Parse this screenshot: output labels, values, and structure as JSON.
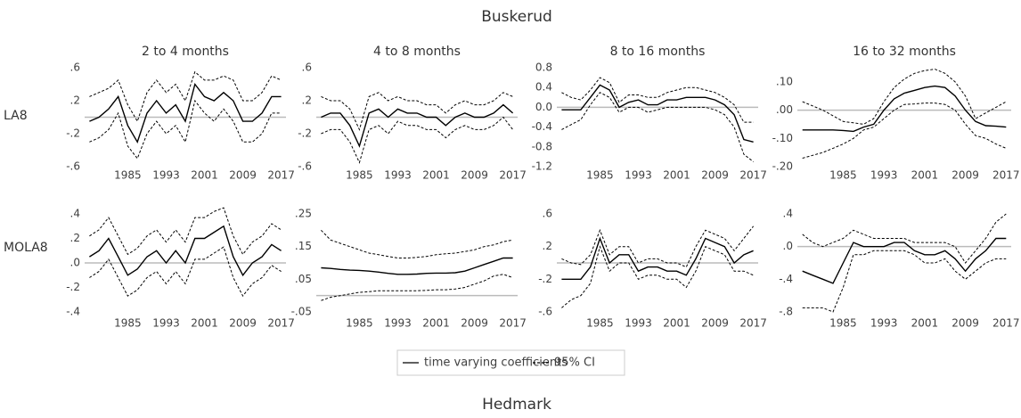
{
  "title": "Buskerud",
  "next_title": "Hedmark",
  "legend": [
    {
      "name": "time varying coefficients",
      "style": "solid"
    },
    {
      "name": "95% CI",
      "style": "dashed"
    }
  ],
  "chart_data": [
    {
      "type": "line",
      "title": "2 to 4 months",
      "row_label": "LA8",
      "x": [
        1977,
        1979,
        1981,
        1983,
        1985,
        1987,
        1989,
        1991,
        1993,
        1995,
        1997,
        1999,
        2001,
        2003,
        2005,
        2007,
        2009,
        2011,
        2013,
        2015,
        2017
      ],
      "estimate": [
        -0.05,
        0.0,
        0.1,
        0.25,
        -0.1,
        -0.3,
        0.05,
        0.2,
        0.05,
        0.15,
        -0.05,
        0.4,
        0.25,
        0.2,
        0.3,
        0.2,
        -0.05,
        -0.05,
        0.05,
        0.25,
        0.25
      ],
      "upper": [
        0.25,
        0.3,
        0.35,
        0.45,
        0.15,
        -0.05,
        0.3,
        0.45,
        0.3,
        0.4,
        0.2,
        0.55,
        0.45,
        0.45,
        0.5,
        0.45,
        0.2,
        0.2,
        0.3,
        0.5,
        0.45
      ],
      "lower": [
        -0.3,
        -0.25,
        -0.15,
        0.05,
        -0.35,
        -0.5,
        -0.2,
        -0.05,
        -0.2,
        -0.1,
        -0.3,
        0.2,
        0.05,
        -0.05,
        0.1,
        -0.05,
        -0.3,
        -0.3,
        -0.2,
        0.05,
        0.05
      ],
      "xlim": [
        1976,
        2018
      ],
      "xticks": [
        1985,
        1993,
        2001,
        2009,
        2017
      ],
      "ylim": [
        -0.6,
        0.6
      ],
      "yticks": [
        {
          "value": 0.6,
          "label": ".6"
        },
        {
          "value": 0.2,
          "label": ".2"
        },
        {
          "value": -0.2,
          "label": "-.2"
        },
        {
          "value": -0.6,
          "label": "-.6"
        }
      ],
      "hline": 0
    },
    {
      "type": "line",
      "title": "4 to 8 months",
      "x": [
        1977,
        1979,
        1981,
        1983,
        1985,
        1987,
        1989,
        1991,
        1993,
        1995,
        1997,
        1999,
        2001,
        2003,
        2005,
        2007,
        2009,
        2011,
        2013,
        2015,
        2017
      ],
      "estimate": [
        0.0,
        0.05,
        0.05,
        -0.1,
        -0.35,
        0.05,
        0.1,
        0.0,
        0.1,
        0.05,
        0.05,
        0.0,
        0.0,
        -0.1,
        0.0,
        0.05,
        0.0,
        0.0,
        0.05,
        0.15,
        0.05
      ],
      "upper": [
        0.25,
        0.2,
        0.2,
        0.1,
        -0.15,
        0.25,
        0.3,
        0.2,
        0.25,
        0.2,
        0.2,
        0.15,
        0.15,
        0.05,
        0.15,
        0.2,
        0.15,
        0.15,
        0.2,
        0.3,
        0.25
      ],
      "lower": [
        -0.2,
        -0.15,
        -0.15,
        -0.3,
        -0.55,
        -0.15,
        -0.1,
        -0.2,
        -0.05,
        -0.1,
        -0.1,
        -0.15,
        -0.15,
        -0.25,
        -0.15,
        -0.1,
        -0.15,
        -0.15,
        -0.1,
        0.0,
        -0.15
      ],
      "xlim": [
        1976,
        2018
      ],
      "xticks": [
        1985,
        1993,
        2001,
        2009,
        2017
      ],
      "ylim": [
        -0.6,
        0.6
      ],
      "yticks": [
        {
          "value": 0.6,
          "label": ".6"
        },
        {
          "value": 0.2,
          "label": ".2"
        },
        {
          "value": -0.2,
          "label": "-.2"
        },
        {
          "value": -0.6,
          "label": "-.6"
        }
      ],
      "hline": 0
    },
    {
      "type": "line",
      "title": "8 to 16 months",
      "x": [
        1977,
        1979,
        1981,
        1983,
        1985,
        1987,
        1989,
        1991,
        1993,
        1995,
        1997,
        1999,
        2001,
        2003,
        2005,
        2007,
        2009,
        2011,
        2013,
        2015,
        2017
      ],
      "estimate": [
        -0.05,
        -0.05,
        -0.05,
        0.2,
        0.45,
        0.35,
        0.0,
        0.1,
        0.15,
        0.05,
        0.05,
        0.15,
        0.15,
        0.2,
        0.2,
        0.2,
        0.15,
        0.05,
        -0.15,
        -0.65,
        -0.7
      ],
      "upper": [
        0.3,
        0.2,
        0.15,
        0.35,
        0.6,
        0.5,
        0.1,
        0.25,
        0.25,
        0.2,
        0.2,
        0.3,
        0.35,
        0.4,
        0.4,
        0.35,
        0.3,
        0.2,
        0.05,
        -0.3,
        -0.3
      ],
      "lower": [
        -0.45,
        -0.35,
        -0.25,
        0.05,
        0.3,
        0.2,
        -0.1,
        0.0,
        0.0,
        -0.1,
        -0.05,
        0.0,
        0.0,
        0.0,
        0.0,
        0.0,
        -0.05,
        -0.15,
        -0.4,
        -0.95,
        -1.1
      ],
      "xlim": [
        1976,
        2018
      ],
      "xticks": [
        1985,
        1993,
        2001,
        2009,
        2017
      ],
      "ylim": [
        -1.2,
        0.8
      ],
      "yticks": [
        0.8,
        0.4,
        {
          "value": 0,
          "label": "0.0"
        },
        -0.4,
        -0.8,
        -1.2
      ],
      "hline": 0
    },
    {
      "type": "line",
      "title": "16 to 32 months",
      "x": [
        1977,
        1979,
        1981,
        1983,
        1985,
        1987,
        1989,
        1991,
        1993,
        1995,
        1997,
        1999,
        2001,
        2003,
        2005,
        2007,
        2009,
        2011,
        2013,
        2015,
        2017
      ],
      "estimate": [
        -0.07,
        -0.07,
        -0.07,
        -0.07,
        -0.072,
        -0.075,
        -0.06,
        -0.05,
        0.0,
        0.04,
        0.06,
        0.07,
        0.08,
        0.085,
        0.08,
        0.05,
        0.0,
        -0.04,
        -0.055,
        -0.057,
        -0.06
      ],
      "upper": [
        0.03,
        0.015,
        0.0,
        -0.02,
        -0.04,
        -0.045,
        -0.05,
        -0.03,
        0.03,
        0.08,
        0.11,
        0.13,
        0.14,
        0.145,
        0.13,
        0.1,
        0.05,
        -0.03,
        -0.01,
        0.01,
        0.03
      ],
      "lower": [
        -0.17,
        -0.16,
        -0.15,
        -0.135,
        -0.12,
        -0.1,
        -0.07,
        -0.06,
        -0.03,
        0.0,
        0.02,
        0.022,
        0.025,
        0.025,
        0.02,
        0.0,
        -0.05,
        -0.09,
        -0.1,
        -0.12,
        -0.135
      ],
      "xlim": [
        1976,
        2018
      ],
      "xticks": [
        1985,
        1993,
        2001,
        2009,
        2017
      ],
      "ylim": [
        -0.2,
        0.15
      ],
      "yticks": [
        {
          "value": 0.1,
          "label": ".10"
        },
        {
          "value": 0,
          "label": ".00"
        },
        {
          "value": -0.1,
          "label": "-.10"
        },
        {
          "value": -0.2,
          "label": "-.20"
        }
      ],
      "hline": 0
    },
    {
      "type": "line",
      "row_label": "MOLA8",
      "x": [
        1977,
        1979,
        1981,
        1983,
        1985,
        1987,
        1989,
        1991,
        1993,
        1995,
        1997,
        1999,
        2001,
        2003,
        2005,
        2007,
        2009,
        2011,
        2013,
        2015,
        2017
      ],
      "estimate": [
        0.05,
        0.1,
        0.2,
        0.05,
        -0.1,
        -0.05,
        0.05,
        0.1,
        0.0,
        0.1,
        0.0,
        0.2,
        0.2,
        0.25,
        0.3,
        0.05,
        -0.1,
        0.0,
        0.05,
        0.15,
        0.1
      ],
      "upper": [
        0.22,
        0.27,
        0.37,
        0.22,
        0.07,
        0.12,
        0.22,
        0.27,
        0.17,
        0.27,
        0.17,
        0.37,
        0.37,
        0.42,
        0.45,
        0.22,
        0.07,
        0.17,
        0.22,
        0.32,
        0.27
      ],
      "lower": [
        -0.12,
        -0.07,
        0.03,
        -0.12,
        -0.27,
        -0.22,
        -0.12,
        -0.07,
        -0.17,
        -0.07,
        -0.17,
        0.03,
        0.03,
        0.08,
        0.13,
        -0.12,
        -0.27,
        -0.17,
        -0.12,
        -0.02,
        -0.07
      ],
      "xlim": [
        1976,
        2018
      ],
      "xticks": [
        1985,
        1993,
        2001,
        2009,
        2017
      ],
      "ylim": [
        -0.4,
        0.4
      ],
      "yticks": [
        {
          "value": 0.4,
          "label": ".4"
        },
        {
          "value": 0.2,
          "label": ".2"
        },
        {
          "value": 0,
          "label": ".0"
        },
        {
          "value": -0.2,
          "label": "-.2"
        },
        {
          "value": -0.4,
          "label": "-.4"
        }
      ],
      "hline": 0
    },
    {
      "type": "line",
      "x": [
        1977,
        1979,
        1981,
        1983,
        1985,
        1987,
        1989,
        1991,
        1993,
        1995,
        1997,
        1999,
        2001,
        2003,
        2005,
        2007,
        2009,
        2011,
        2013,
        2015,
        2017
      ],
      "estimate": [
        0.085,
        0.083,
        0.08,
        0.078,
        0.077,
        0.075,
        0.072,
        0.068,
        0.065,
        0.065,
        0.066,
        0.068,
        0.069,
        0.069,
        0.07,
        0.075,
        0.085,
        0.095,
        0.105,
        0.115,
        0.115
      ],
      "upper": [
        0.2,
        0.17,
        0.16,
        0.15,
        0.14,
        0.13,
        0.125,
        0.12,
        0.115,
        0.115,
        0.117,
        0.12,
        0.125,
        0.128,
        0.13,
        0.135,
        0.14,
        0.15,
        0.155,
        0.165,
        0.17
      ],
      "lower": [
        -0.015,
        -0.005,
        0.0,
        0.005,
        0.01,
        0.012,
        0.015,
        0.015,
        0.015,
        0.015,
        0.015,
        0.016,
        0.018,
        0.018,
        0.02,
        0.025,
        0.035,
        0.045,
        0.06,
        0.065,
        0.055
      ],
      "xlim": [
        1976,
        2018
      ],
      "xticks": [
        1985,
        1993,
        2001,
        2009,
        2017
      ],
      "ylim": [
        -0.05,
        0.25
      ],
      "yticks": [
        {
          "value": 0.25,
          "label": ".25"
        },
        {
          "value": 0.15,
          "label": ".15"
        },
        {
          "value": 0.05,
          "label": ".05"
        },
        {
          "value": -0.05,
          "label": "-.05"
        }
      ],
      "hline": 0
    },
    {
      "type": "line",
      "x": [
        1977,
        1979,
        1981,
        1983,
        1985,
        1987,
        1989,
        1991,
        1993,
        1995,
        1997,
        1999,
        2001,
        2003,
        2005,
        2007,
        2009,
        2011,
        2013,
        2015,
        2017
      ],
      "estimate": [
        -0.2,
        -0.2,
        -0.2,
        -0.05,
        0.3,
        0.0,
        0.1,
        0.1,
        -0.1,
        -0.05,
        -0.05,
        -0.1,
        -0.1,
        -0.15,
        0.05,
        0.3,
        0.25,
        0.2,
        0.0,
        0.1,
        0.15
      ],
      "upper": [
        0.05,
        0.0,
        -0.02,
        0.1,
        0.4,
        0.1,
        0.2,
        0.2,
        0.0,
        0.05,
        0.05,
        0.0,
        0.0,
        -0.05,
        0.2,
        0.4,
        0.35,
        0.3,
        0.15,
        0.3,
        0.45
      ],
      "lower": [
        -0.55,
        -0.45,
        -0.4,
        -0.25,
        0.2,
        -0.1,
        0.0,
        0.0,
        -0.2,
        -0.15,
        -0.15,
        -0.2,
        -0.2,
        -0.3,
        -0.1,
        0.2,
        0.15,
        0.1,
        -0.1,
        -0.1,
        -0.15
      ],
      "xlim": [
        1976,
        2018
      ],
      "xticks": [
        1985,
        1993,
        2001,
        2009,
        2017
      ],
      "ylim": [
        -0.6,
        0.6
      ],
      "yticks": [
        {
          "value": 0.6,
          "label": ".6"
        },
        {
          "value": 0.2,
          "label": ".2"
        },
        {
          "value": -0.2,
          "label": "-.2"
        },
        {
          "value": -0.6,
          "label": "-.6"
        }
      ],
      "hline": 0
    },
    {
      "type": "line",
      "x": [
        1977,
        1979,
        1981,
        1983,
        1985,
        1987,
        1989,
        1991,
        1993,
        1995,
        1997,
        1999,
        2001,
        2003,
        2005,
        2007,
        2009,
        2011,
        2013,
        2015,
        2017
      ],
      "estimate": [
        -0.3,
        -0.35,
        -0.4,
        -0.45,
        -0.2,
        0.05,
        0.0,
        0.0,
        0.0,
        0.05,
        0.05,
        -0.05,
        -0.1,
        -0.1,
        -0.05,
        -0.15,
        -0.3,
        -0.15,
        -0.05,
        0.1,
        0.1
      ],
      "upper": [
        0.15,
        0.05,
        0.0,
        0.05,
        0.1,
        0.2,
        0.15,
        0.1,
        0.1,
        0.1,
        0.1,
        0.05,
        0.05,
        0.05,
        0.05,
        0.0,
        -0.2,
        -0.05,
        0.1,
        0.3,
        0.4
      ],
      "lower": [
        -0.75,
        -0.75,
        -0.75,
        -0.8,
        -0.5,
        -0.1,
        -0.1,
        -0.05,
        -0.05,
        -0.05,
        -0.05,
        -0.1,
        -0.2,
        -0.2,
        -0.15,
        -0.3,
        -0.4,
        -0.3,
        -0.2,
        -0.15,
        -0.15
      ],
      "xlim": [
        1976,
        2018
      ],
      "xticks": [
        1985,
        1993,
        2001,
        2009,
        2017
      ],
      "ylim": [
        -0.8,
        0.4
      ],
      "yticks": [
        {
          "value": 0.4,
          "label": ".4"
        },
        {
          "value": 0,
          "label": ".0"
        },
        {
          "value": -0.4,
          "label": "-.4"
        },
        {
          "value": -0.8,
          "label": "-.8"
        }
      ],
      "hline": 0
    }
  ]
}
